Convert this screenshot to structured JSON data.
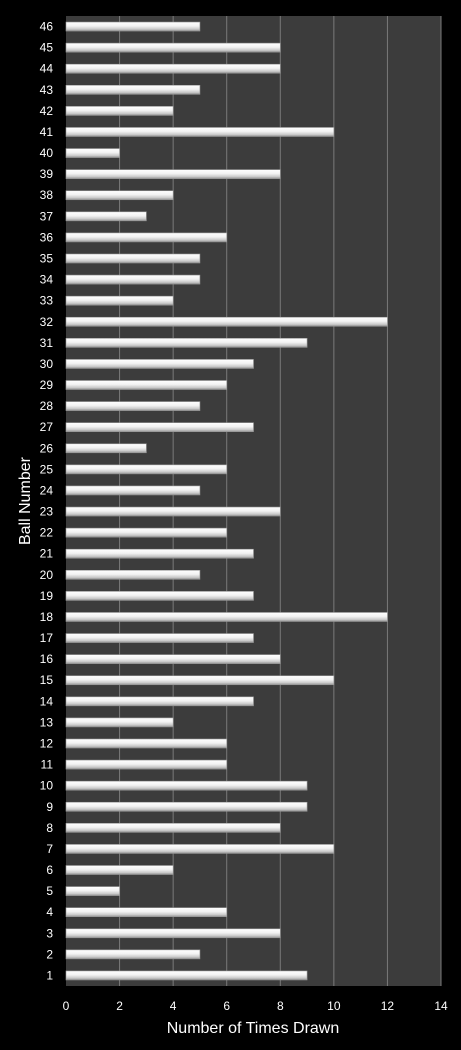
{
  "chart_data": {
    "type": "bar",
    "orientation": "horizontal",
    "title": "",
    "xlabel": "Number of Times Drawn",
    "ylabel": "Ball Number",
    "xlim": [
      0,
      14
    ],
    "xticks": [
      0,
      2,
      4,
      6,
      8,
      10,
      12,
      14
    ],
    "grid": "vertical",
    "legend": "none",
    "colors": {
      "background": "#000000",
      "plot_area": "#3c3c3c",
      "bar": "#e8e8e8",
      "gridline": "#7a7a7a",
      "text": "#ffffff"
    },
    "categories": [
      "1",
      "2",
      "3",
      "4",
      "5",
      "6",
      "7",
      "8",
      "9",
      "10",
      "11",
      "12",
      "13",
      "14",
      "15",
      "16",
      "17",
      "18",
      "19",
      "20",
      "21",
      "22",
      "23",
      "24",
      "25",
      "26",
      "27",
      "28",
      "29",
      "30",
      "31",
      "32",
      "33",
      "34",
      "35",
      "36",
      "37",
      "38",
      "39",
      "40",
      "41",
      "42",
      "43",
      "44",
      "45",
      "46"
    ],
    "values": [
      9,
      5,
      8,
      6,
      2,
      4,
      10,
      8,
      9,
      9,
      6,
      6,
      4,
      7,
      10,
      8,
      7,
      12,
      7,
      5,
      7,
      6,
      8,
      5,
      6,
      3,
      7,
      5,
      6,
      7,
      9,
      12,
      4,
      5,
      5,
      6,
      3,
      4,
      8,
      2,
      10,
      4,
      5,
      8,
      8,
      5
    ]
  }
}
